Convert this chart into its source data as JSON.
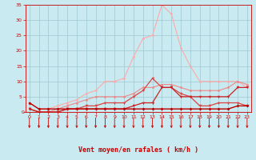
{
  "x": [
    0,
    1,
    2,
    3,
    4,
    5,
    6,
    7,
    8,
    9,
    10,
    11,
    12,
    13,
    14,
    15,
    16,
    17,
    18,
    19,
    20,
    21,
    22,
    23
  ],
  "line1": [
    3,
    1,
    1,
    1,
    1,
    1,
    1,
    1,
    1,
    1,
    1,
    1,
    1,
    1,
    1,
    1,
    1,
    1,
    1,
    1,
    1,
    1,
    2,
    2
  ],
  "line2": [
    1,
    0,
    0,
    0,
    1,
    1,
    1,
    1,
    1,
    1,
    1,
    2,
    3,
    3,
    8,
    8,
    5,
    5,
    5,
    5,
    5,
    5,
    8,
    8
  ],
  "line3": [
    1,
    0,
    0,
    0,
    1,
    1,
    2,
    2,
    3,
    3,
    3,
    5,
    7,
    11,
    8,
    8,
    6,
    5,
    2,
    2,
    3,
    3,
    3,
    2
  ],
  "line4": [
    1,
    0,
    0,
    1,
    2,
    3,
    4,
    5,
    5,
    5,
    5,
    6,
    8,
    8,
    9,
    9,
    8,
    7,
    7,
    7,
    7,
    8,
    10,
    9
  ],
  "line5": [
    3,
    1,
    1,
    2,
    3,
    4,
    6,
    7,
    10,
    10,
    11,
    18,
    24,
    25,
    35,
    32,
    21,
    15,
    10,
    10,
    10,
    10,
    10,
    8
  ],
  "bg_color": "#c8eaf0",
  "grid_color": "#a0c8d0",
  "line1_color": "#bb0000",
  "line2_color": "#cc2222",
  "line3_color": "#dd4444",
  "line4_color": "#ee8888",
  "line5_color": "#ffaaaa",
  "axis_color": "#cc0000",
  "xlabel": "Vent moyen/en rafales ( km/h )",
  "ylim": [
    0,
    35
  ],
  "xlim": [
    0,
    23
  ],
  "yticks": [
    0,
    5,
    10,
    15,
    20,
    25,
    30,
    35
  ],
  "xticks": [
    0,
    1,
    2,
    3,
    4,
    5,
    6,
    7,
    8,
    9,
    10,
    11,
    12,
    13,
    14,
    15,
    16,
    17,
    18,
    19,
    20,
    21,
    22,
    23
  ]
}
